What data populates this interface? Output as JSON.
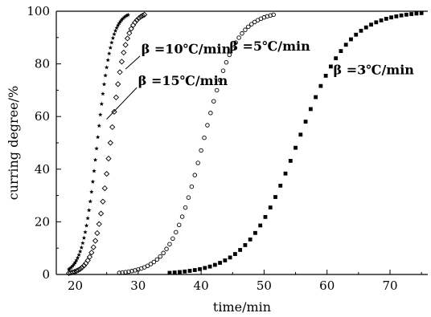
{
  "chart_data": {
    "type": "scatter",
    "title": "",
    "xlabel": "time/min",
    "ylabel": "curring degree/%",
    "xlim": [
      17,
      76
    ],
    "ylim": [
      0,
      100
    ],
    "xticks": [
      20,
      30,
      40,
      50,
      60,
      70
    ],
    "yticks": [
      0,
      20,
      40,
      60,
      80,
      100
    ],
    "grid": false,
    "legend": "none",
    "series": [
      {
        "label": "β =15℃/min",
        "marker": "star",
        "color": "#000000",
        "midpoint": 23.5,
        "width": 1.15,
        "start": 19.0,
        "end": 28.5,
        "step": 0.2
      },
      {
        "label": "β =10℃/min",
        "marker": "diamond",
        "color": "#000000",
        "midpoint": 25.6,
        "width": 1.25,
        "start": 19.0,
        "end": 31.0,
        "step": 0.3
      },
      {
        "label": "β =5℃/min",
        "marker": "circle",
        "color": "#000000",
        "midpoint": 40.3,
        "width": 2.6,
        "start": 27.0,
        "end": 51.5,
        "step": 0.5
      },
      {
        "label": "β =3℃/min",
        "marker": "square",
        "color": "#000000",
        "midpoint": 55.3,
        "width": 4.0,
        "start": 35.0,
        "end": 75.0,
        "step": 0.8
      }
    ],
    "annotations": [
      {
        "text": "β =10℃/min",
        "label_x": 30.5,
        "label_y": 84,
        "line": [
          [
            30.3,
            83
          ],
          [
            28.0,
            78
          ]
        ]
      },
      {
        "text": "β =15℃/min",
        "label_x": 30.0,
        "label_y": 72,
        "line": [
          [
            29.8,
            71
          ],
          [
            25.0,
            59
          ]
        ]
      },
      {
        "text": "β =5℃/min",
        "label_x": 44.5,
        "label_y": 85,
        "line": null
      },
      {
        "text": "β =3℃/min",
        "label_x": 61.0,
        "label_y": 76,
        "line": null
      }
    ]
  }
}
